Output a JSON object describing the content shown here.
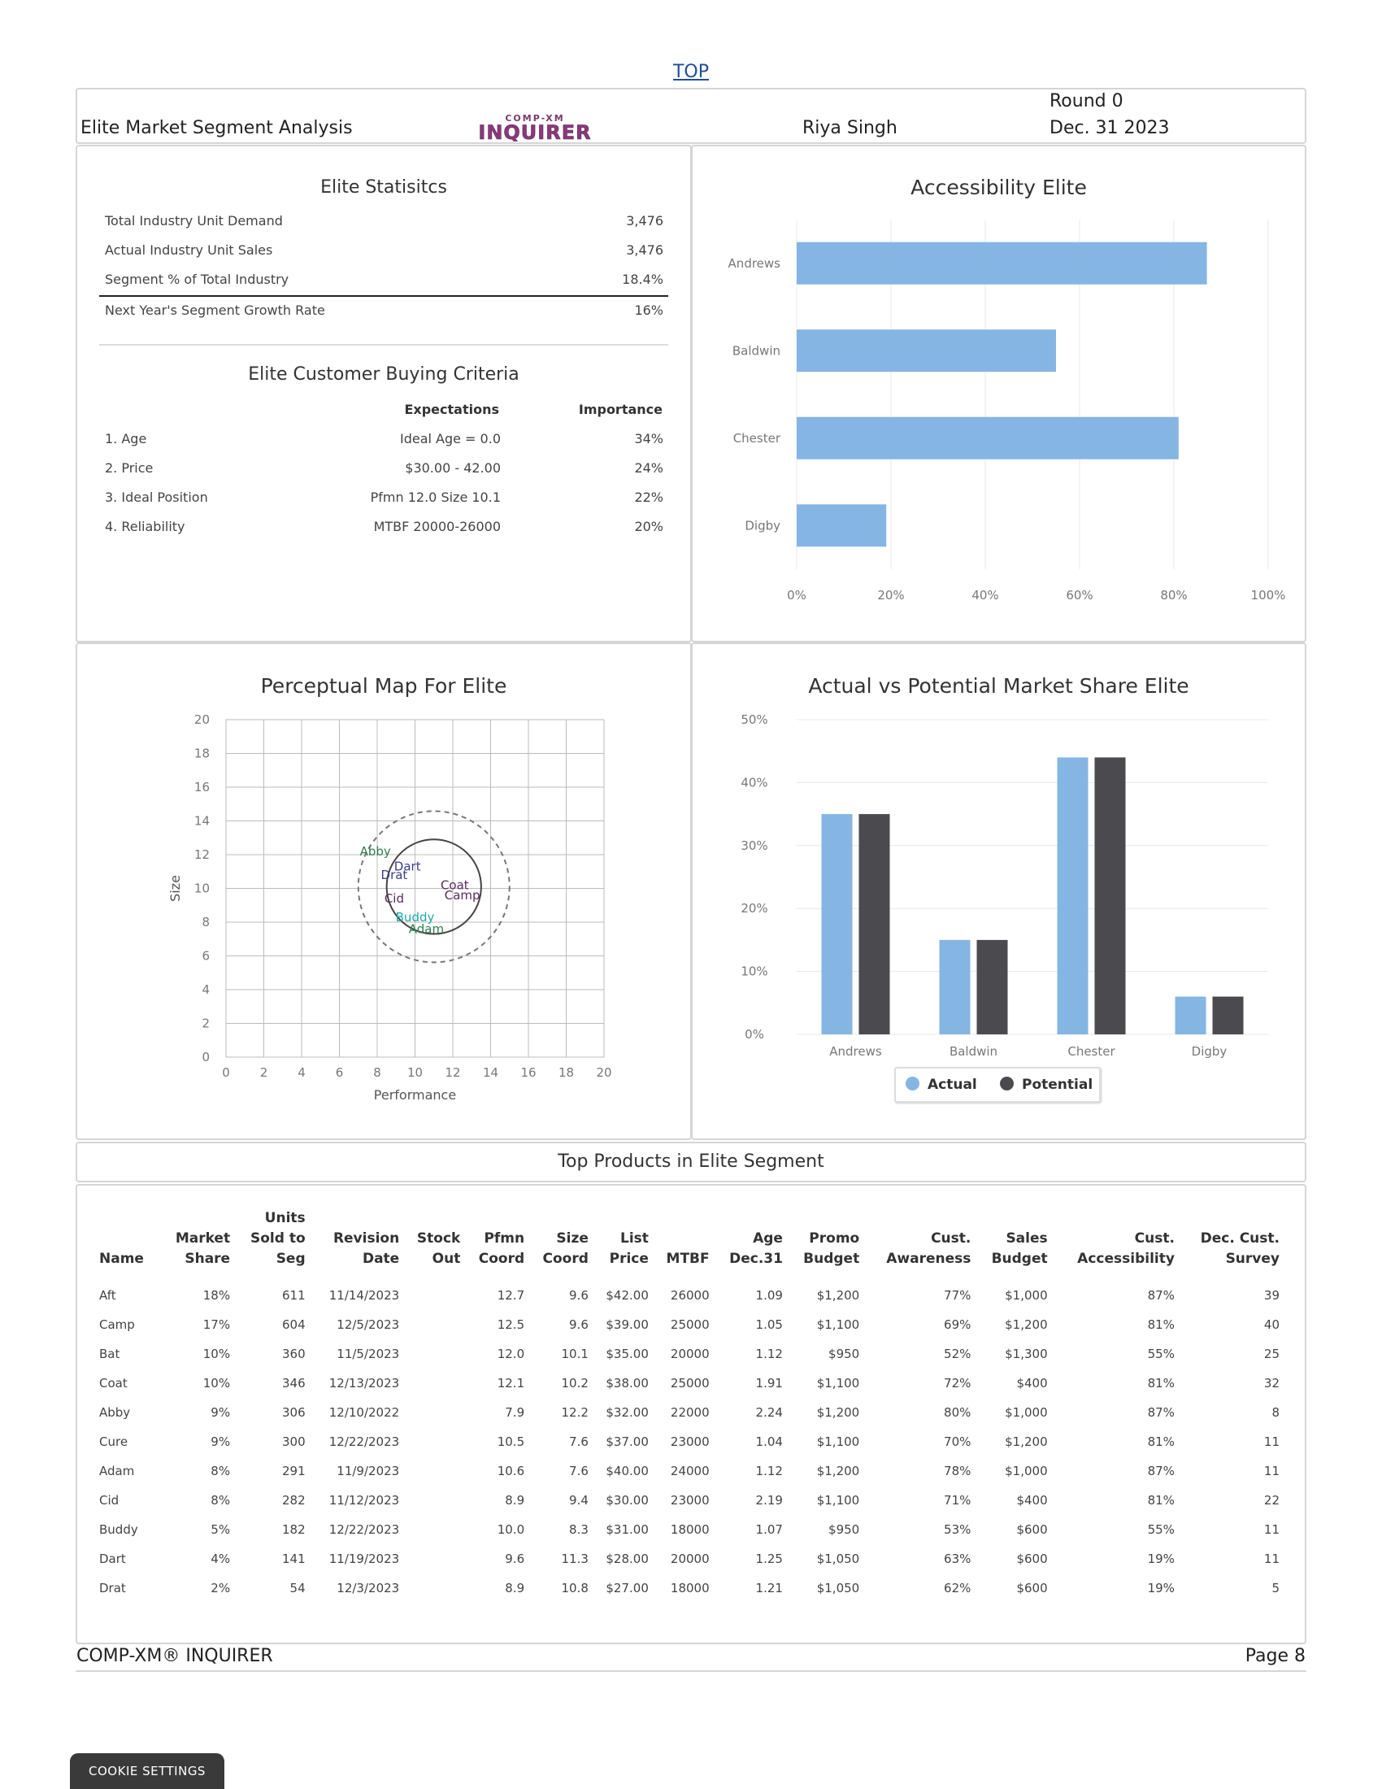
{
  "nav": {
    "top_link": "TOP"
  },
  "header": {
    "title": "Elite Market Segment Analysis",
    "logo_small": "COMP-XM",
    "logo_big": "INQUIRER",
    "user": "Riya Singh",
    "round": "Round 0",
    "date": "Dec. 31 2023"
  },
  "stats": {
    "title": "Elite Statisitcs",
    "rows": [
      {
        "label": "Total Industry Unit Demand",
        "value": "3,476"
      },
      {
        "label": "Actual Industry Unit Sales",
        "value": "3,476"
      },
      {
        "label": "Segment % of Total Industry",
        "value": "18.4%"
      },
      {
        "label": "Next Year's Segment Growth Rate",
        "value": "16%"
      }
    ]
  },
  "criteria": {
    "title": "Elite Customer Buying Criteria",
    "col_expectations": "Expectations",
    "col_importance": "Importance",
    "rows": [
      {
        "label": "1. Age",
        "expectation": "Ideal Age = 0.0",
        "importance": "34%"
      },
      {
        "label": "2. Price",
        "expectation": "$30.00 - 42.00",
        "importance": "24%"
      },
      {
        "label": "3. Ideal Position",
        "expectation": "Pfmn 12.0 Size 10.1",
        "importance": "22%"
      },
      {
        "label": "4. Reliability",
        "expectation": "MTBF 20000-26000",
        "importance": "20%"
      }
    ]
  },
  "chart_data": [
    {
      "type": "bar",
      "orientation": "horizontal",
      "title": "Accessibility Elite",
      "categories": [
        "Andrews",
        "Baldwin",
        "Chester",
        "Digby"
      ],
      "values": [
        87,
        55,
        81,
        19
      ],
      "xlim": [
        0,
        100
      ],
      "xticks": [
        "0%",
        "20%",
        "40%",
        "60%",
        "80%",
        "100%"
      ],
      "color": "#85b5e3",
      "grid": true
    },
    {
      "type": "scatter",
      "title": "Perceptual Map For Elite",
      "xlabel": "Performance",
      "ylabel": "Size",
      "xlim": [
        0,
        20
      ],
      "ylim": [
        0,
        20
      ],
      "xticks": [
        "0",
        "2",
        "4",
        "6",
        "8",
        "10",
        "12",
        "14",
        "16",
        "18",
        "20"
      ],
      "yticks": [
        "0",
        "2",
        "4",
        "6",
        "8",
        "10",
        "12",
        "14",
        "16",
        "18",
        "20"
      ],
      "grid": true,
      "points": [
        {
          "name": "Abby",
          "x": 7.9,
          "y": 12.2,
          "color": "#2e7d4f"
        },
        {
          "name": "Dart",
          "x": 9.6,
          "y": 11.3,
          "color": "#3c3c8a"
        },
        {
          "name": "Drat",
          "x": 8.9,
          "y": 10.8,
          "color": "#3c3c8a"
        },
        {
          "name": "Cid",
          "x": 8.9,
          "y": 9.4,
          "color": "#5a2a5a"
        },
        {
          "name": "Coat",
          "x": 12.1,
          "y": 10.2,
          "color": "#5a2a5a"
        },
        {
          "name": "Camp",
          "x": 12.5,
          "y": 9.6,
          "color": "#5a2a5a"
        },
        {
          "name": "Buddy",
          "x": 10.0,
          "y": 8.3,
          "color": "#1fa8a8"
        },
        {
          "name": "Adam",
          "x": 10.6,
          "y": 7.6,
          "color": "#2e7d4f"
        }
      ],
      "circles": [
        {
          "center": [
            11.0,
            10.1
          ],
          "radius": 4.0,
          "style": "dashed"
        },
        {
          "center": [
            11.0,
            10.1
          ],
          "radius": 2.5,
          "style": "solid"
        }
      ]
    },
    {
      "type": "bar",
      "title": "Actual vs Potential Market Share Elite",
      "categories": [
        "Andrews",
        "Baldwin",
        "Chester",
        "Digby"
      ],
      "ylim": [
        0,
        50
      ],
      "yticks": [
        "0%",
        "10%",
        "20%",
        "30%",
        "40%",
        "50%"
      ],
      "legend": "bottom",
      "grid": true,
      "series": [
        {
          "name": "Actual",
          "values": [
            35,
            15,
            44,
            6
          ],
          "color": "#85b5e3"
        },
        {
          "name": "Potential",
          "values": [
            35,
            15,
            44,
            6
          ],
          "color": "#4a4a4f"
        }
      ]
    }
  ],
  "products": {
    "title": "Top Products in Elite Segment",
    "columns": [
      [
        "Name"
      ],
      [
        "Market",
        "Share"
      ],
      [
        "Units",
        "Sold to",
        "Seg"
      ],
      [
        "Revision",
        "Date"
      ],
      [
        "Stock",
        "Out"
      ],
      [
        "Pfmn",
        "Coord"
      ],
      [
        "Size",
        "Coord"
      ],
      [
        "List",
        "Price"
      ],
      [
        "MTBF"
      ],
      [
        "Age",
        "Dec.31"
      ],
      [
        "Promo",
        "Budget"
      ],
      [
        "Cust.",
        "Awareness"
      ],
      [
        "Sales",
        "Budget"
      ],
      [
        "Cust.",
        "Accessibility"
      ],
      [
        "Dec. Cust.",
        "Survey"
      ]
    ],
    "rows": [
      [
        "Aft",
        "18%",
        "611",
        "11/14/2023",
        "",
        "12.7",
        "9.6",
        "$42.00",
        "26000",
        "1.09",
        "$1,200",
        "77%",
        "$1,000",
        "87%",
        "39"
      ],
      [
        "Camp",
        "17%",
        "604",
        "12/5/2023",
        "",
        "12.5",
        "9.6",
        "$39.00",
        "25000",
        "1.05",
        "$1,100",
        "69%",
        "$1,200",
        "81%",
        "40"
      ],
      [
        "Bat",
        "10%",
        "360",
        "11/5/2023",
        "",
        "12.0",
        "10.1",
        "$35.00",
        "20000",
        "1.12",
        "$950",
        "52%",
        "$1,300",
        "55%",
        "25"
      ],
      [
        "Coat",
        "10%",
        "346",
        "12/13/2023",
        "",
        "12.1",
        "10.2",
        "$38.00",
        "25000",
        "1.91",
        "$1,100",
        "72%",
        "$400",
        "81%",
        "32"
      ],
      [
        "Abby",
        "9%",
        "306",
        "12/10/2022",
        "",
        "7.9",
        "12.2",
        "$32.00",
        "22000",
        "2.24",
        "$1,200",
        "80%",
        "$1,000",
        "87%",
        "8"
      ],
      [
        "Cure",
        "9%",
        "300",
        "12/22/2023",
        "",
        "10.5",
        "7.6",
        "$37.00",
        "23000",
        "1.04",
        "$1,100",
        "70%",
        "$1,200",
        "81%",
        "11"
      ],
      [
        "Adam",
        "8%",
        "291",
        "11/9/2023",
        "",
        "10.6",
        "7.6",
        "$40.00",
        "24000",
        "1.12",
        "$1,200",
        "78%",
        "$1,000",
        "87%",
        "11"
      ],
      [
        "Cid",
        "8%",
        "282",
        "11/12/2023",
        "",
        "8.9",
        "9.4",
        "$30.00",
        "23000",
        "2.19",
        "$1,100",
        "71%",
        "$400",
        "81%",
        "22"
      ],
      [
        "Buddy",
        "5%",
        "182",
        "12/22/2023",
        "",
        "10.0",
        "8.3",
        "$31.00",
        "18000",
        "1.07",
        "$950",
        "53%",
        "$600",
        "55%",
        "11"
      ],
      [
        "Dart",
        "4%",
        "141",
        "11/19/2023",
        "",
        "9.6",
        "11.3",
        "$28.00",
        "20000",
        "1.25",
        "$1,050",
        "63%",
        "$600",
        "19%",
        "11"
      ],
      [
        "Drat",
        "2%",
        "54",
        "12/3/2023",
        "",
        "8.9",
        "10.8",
        "$27.00",
        "18000",
        "1.21",
        "$1,050",
        "62%",
        "$600",
        "19%",
        "5"
      ]
    ]
  },
  "footer": {
    "left": "COMP-XM® INQUIRER",
    "right": "Page 8"
  },
  "cookie": {
    "label": "COOKIE SETTINGS"
  }
}
